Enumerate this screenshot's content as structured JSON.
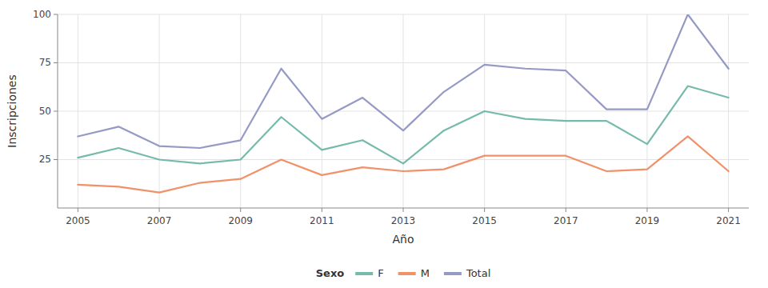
{
  "chart_data": {
    "type": "line",
    "x": [
      2005,
      2006,
      2007,
      2008,
      2009,
      2010,
      2011,
      2012,
      2013,
      2014,
      2015,
      2016,
      2017,
      2018,
      2019,
      2020,
      2021
    ],
    "series": [
      {
        "name": "F",
        "color": "#66b2a2",
        "values": [
          26,
          31,
          25,
          23,
          25,
          47,
          30,
          35,
          23,
          40,
          50,
          46,
          45,
          45,
          33,
          63,
          57
        ]
      },
      {
        "name": "M",
        "color": "#f0855a",
        "values": [
          12,
          11,
          8,
          13,
          15,
          25,
          17,
          21,
          19,
          20,
          27,
          27,
          27,
          19,
          20,
          37,
          19
        ]
      },
      {
        "name": "Total",
        "color": "#8a8fbf",
        "values": [
          37,
          42,
          32,
          31,
          35,
          72,
          46,
          57,
          40,
          60,
          74,
          72,
          71,
          51,
          51,
          100,
          72
        ]
      }
    ],
    "xlabel": "Año",
    "ylabel": "Inscripciones",
    "legend_title": "Sexo",
    "legend": "bottom",
    "xlim": [
      2004.5,
      2021.5
    ],
    "xticks": [
      2005,
      2007,
      2009,
      2011,
      2013,
      2015,
      2017,
      2019,
      2021
    ],
    "ylim": [
      0,
      100
    ],
    "yticks": [
      25,
      50,
      75,
      100
    ],
    "grid": true
  }
}
